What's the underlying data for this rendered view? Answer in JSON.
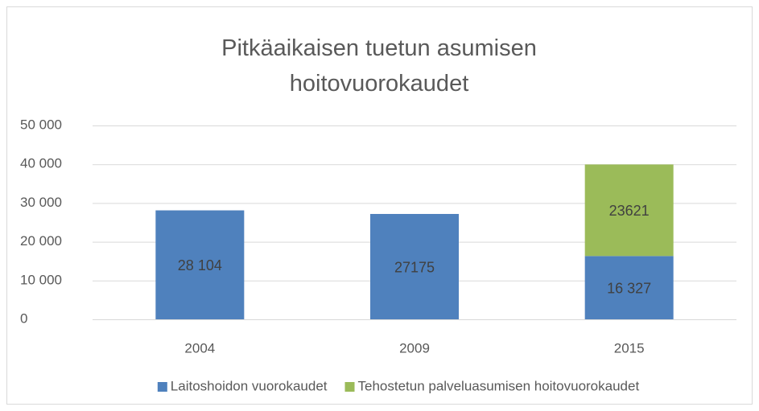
{
  "chart_data": {
    "type": "stacked_bar",
    "title": "Pitkäaikaisen tuetun asumisen hoitovuorokaudet",
    "categories": [
      "2004",
      "2009",
      "2015"
    ],
    "series": [
      {
        "name": "Laitoshoidon vuorokaudet",
        "color": "#4f81bd",
        "values": [
          28104,
          27175,
          16327
        ],
        "value_labels": [
          "28 104",
          "27175",
          "16 327"
        ]
      },
      {
        "name": "Tehostetun palveluasumisen hoitovuorokaudet",
        "color": "#9bbb59",
        "values": [
          null,
          null,
          23621
        ],
        "value_labels": [
          null,
          null,
          "23621"
        ]
      }
    ],
    "ylim": [
      0,
      50000
    ],
    "yticks": [
      0,
      {
        "value": 10000,
        "label": "10 000"
      },
      {
        "value": 20000,
        "label": "20 000"
      },
      {
        "value": 30000,
        "label": "30 000"
      },
      {
        "value": 40000,
        "label": "40 000"
      },
      {
        "value": 50000,
        "label": "50 000"
      }
    ],
    "grid": true,
    "legend": "bottom"
  }
}
